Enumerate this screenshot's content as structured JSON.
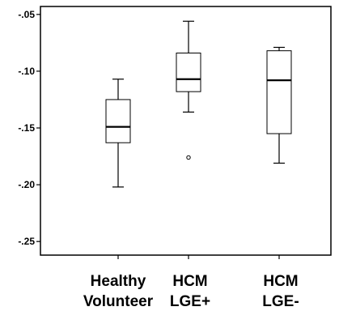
{
  "chart_data": {
    "type": "boxplot",
    "title": "",
    "xlabel": "",
    "ylabel": "",
    "ylim": [
      -0.262,
      -0.043
    ],
    "grid": false,
    "legend": "none",
    "y_ticks": [
      {
        "value": -0.05,
        "label": "-.05"
      },
      {
        "value": -0.1,
        "label": "-.10"
      },
      {
        "value": -0.15,
        "label": "-.15"
      },
      {
        "value": -0.2,
        "label": "-.20"
      },
      {
        "value": -0.25,
        "label": "-.25"
      }
    ],
    "categories": [
      {
        "lines": [
          "Healthy",
          "Volunteer"
        ]
      },
      {
        "lines": [
          "HCM",
          "LGE+"
        ]
      },
      {
        "lines": [
          "HCM",
          "LGE-"
        ]
      }
    ],
    "boxes": [
      {
        "whisker_high": -0.107,
        "q3": -0.125,
        "median": -0.149,
        "q1": -0.163,
        "whisker_low": -0.202,
        "outliers": []
      },
      {
        "whisker_high": -0.056,
        "q3": -0.084,
        "median": -0.107,
        "q1": -0.118,
        "whisker_low": -0.136,
        "outliers": [
          -0.176
        ]
      },
      {
        "whisker_high": -0.079,
        "q3": -0.082,
        "median": -0.108,
        "q1": -0.155,
        "whisker_low": -0.181,
        "outliers": []
      }
    ],
    "colors": {
      "box_fill": "#ffffff",
      "box_stroke": "#000000",
      "frame": "#000000",
      "text": "#000000"
    }
  }
}
